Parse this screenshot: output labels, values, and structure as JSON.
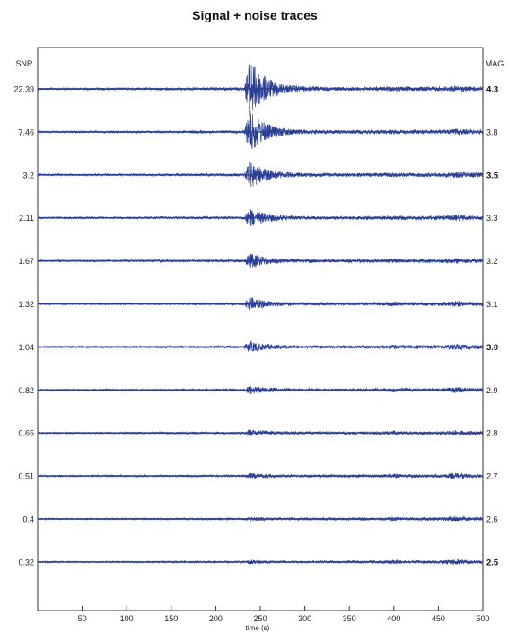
{
  "chart_data": {
    "type": "line",
    "title": "Signal + noise traces",
    "xlabel": "time (s)",
    "xlim": [
      0,
      500
    ],
    "x_ticks": [
      50,
      100,
      150,
      200,
      250,
      300,
      350,
      400,
      450,
      500
    ],
    "left_axis_header": "SNR",
    "right_axis_header": "MAG",
    "event_time_s": 240,
    "trace_color": "#2a3f93",
    "grid": false,
    "traces": [
      {
        "snr": "22.39",
        "mag": "4.3",
        "mag_bold": true,
        "event_amplitude": 1.0
      },
      {
        "snr": "7.46",
        "mag": "3.8",
        "mag_bold": false,
        "event_amplitude": 0.72
      },
      {
        "snr": "3.2",
        "mag": "3.5",
        "mag_bold": true,
        "event_amplitude": 0.45
      },
      {
        "snr": "2.11",
        "mag": "3.3",
        "mag_bold": false,
        "event_amplitude": 0.3
      },
      {
        "snr": "1.67",
        "mag": "3.2",
        "mag_bold": false,
        "event_amplitude": 0.24
      },
      {
        "snr": "1.32",
        "mag": "3.1",
        "mag_bold": false,
        "event_amplitude": 0.2
      },
      {
        "snr": "1.04",
        "mag": "3.0",
        "mag_bold": true,
        "event_amplitude": 0.16
      },
      {
        "snr": "0.82",
        "mag": "2.9",
        "mag_bold": false,
        "event_amplitude": 0.12
      },
      {
        "snr": "0.65",
        "mag": "2.8",
        "mag_bold": false,
        "event_amplitude": 0.09
      },
      {
        "snr": "0.51",
        "mag": "2.7",
        "mag_bold": false,
        "event_amplitude": 0.07
      },
      {
        "snr": "0.4",
        "mag": "2.6",
        "mag_bold": false,
        "event_amplitude": 0.05
      },
      {
        "snr": "0.32",
        "mag": "2.5",
        "mag_bold": true,
        "event_amplitude": 0.04
      }
    ]
  }
}
